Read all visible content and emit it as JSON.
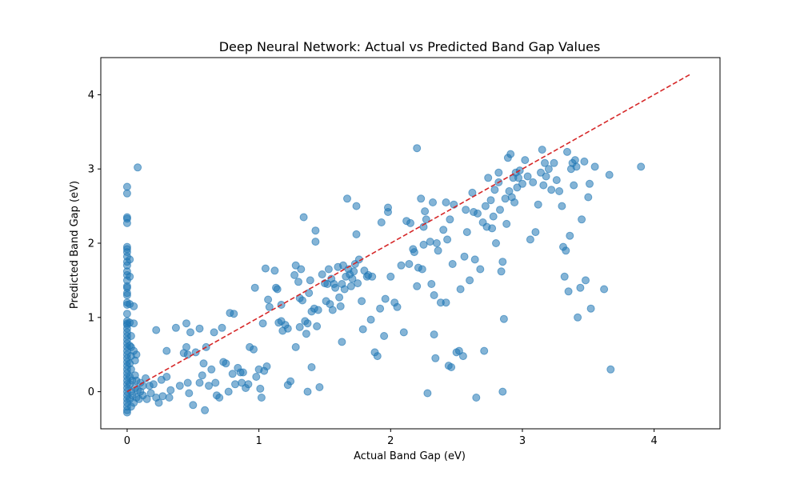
{
  "chart_data": {
    "type": "scatter",
    "title": "Deep Neural Network: Actual vs Predicted Band Gap Values",
    "xlabel": "Actual Band Gap (eV)",
    "ylabel": "Predicted Band Gap (eV)",
    "xlim": [
      -0.2,
      4.5
    ],
    "ylim": [
      -0.5,
      4.5
    ],
    "xticks": [
      0,
      1,
      2,
      3,
      4
    ],
    "yticks": [
      0,
      1,
      2,
      3,
      4
    ],
    "grid": false,
    "colors": {
      "points": "#1f77b4",
      "reference_line": "#d62728"
    },
    "reference_line": {
      "style": "dashed",
      "from": [
        0,
        0
      ],
      "to": [
        4.28,
        4.28
      ]
    },
    "points": [
      [
        0,
        2.76
      ],
      [
        0,
        2.67
      ],
      [
        0,
        2.35
      ],
      [
        0,
        2.33
      ],
      [
        0,
        2.27
      ],
      [
        0,
        1.95
      ],
      [
        0,
        1.92
      ],
      [
        0,
        1.88
      ],
      [
        0,
        1.82
      ],
      [
        0,
        1.75
      ],
      [
        0,
        1.7
      ],
      [
        0,
        1.62
      ],
      [
        0,
        1.57
      ],
      [
        0,
        1.5
      ],
      [
        0,
        1.42
      ],
      [
        0,
        1.4
      ],
      [
        0,
        1.33
      ],
      [
        0,
        1.3
      ],
      [
        0,
        1.2
      ],
      [
        0,
        1.17
      ],
      [
        0,
        1.05
      ],
      [
        0,
        0.95
      ],
      [
        0,
        0.92
      ],
      [
        0,
        0.9
      ],
      [
        0,
        0.85
      ],
      [
        0,
        0.8
      ],
      [
        0,
        0.75
      ],
      [
        0,
        0.7
      ],
      [
        0,
        0.65
      ],
      [
        0,
        0.6
      ],
      [
        0,
        0.55
      ],
      [
        0,
        0.5
      ],
      [
        0,
        0.45
      ],
      [
        0,
        0.4
      ],
      [
        0,
        0.35
      ],
      [
        0,
        0.3
      ],
      [
        0,
        0.25
      ],
      [
        0,
        0.2
      ],
      [
        0,
        0.15
      ],
      [
        0,
        0.1
      ],
      [
        0,
        0.05
      ],
      [
        0,
        0
      ],
      [
        0,
        -0.05
      ],
      [
        0,
        -0.1
      ],
      [
        0,
        -0.15
      ],
      [
        0,
        -0.2
      ],
      [
        0,
        -0.25
      ],
      [
        0,
        -0.28
      ],
      [
        0.02,
        1.78
      ],
      [
        0.02,
        1.55
      ],
      [
        0.02,
        1.18
      ],
      [
        0.02,
        0.93
      ],
      [
        0.03,
        0.75
      ],
      [
        0.02,
        0.62
      ],
      [
        0.03,
        0.48
      ],
      [
        0.02,
        0.38
      ],
      [
        0.02,
        0.2
      ],
      [
        0.02,
        0.1
      ],
      [
        0.03,
        0
      ],
      [
        0.02,
        -0.1
      ],
      [
        0.03,
        -0.2
      ],
      [
        0.03,
        0.6
      ],
      [
        0.03,
        0.3
      ],
      [
        0.04,
        0.15
      ],
      [
        0.04,
        -0.05
      ],
      [
        0.05,
        1.15
      ],
      [
        0.05,
        0.92
      ],
      [
        0.05,
        0.55
      ],
      [
        0.06,
        0.42
      ],
      [
        0.06,
        0.22
      ],
      [
        0.06,
        0.05
      ],
      [
        0.07,
        -0.08
      ],
      [
        0.05,
        -0.15
      ],
      [
        0.07,
        0.15
      ],
      [
        0.07,
        0.5
      ],
      [
        0.08,
        3.02
      ],
      [
        0.08,
        0.02
      ],
      [
        0.09,
        -0.1
      ],
      [
        0.1,
        0.12
      ],
      [
        0.1,
        0
      ],
      [
        0.12,
        -0.05
      ],
      [
        0.12,
        0.08
      ],
      [
        0.14,
        0.18
      ],
      [
        0.15,
        -0.1
      ],
      [
        0.17,
        0.08
      ],
      [
        0.18,
        -0.02
      ],
      [
        0.2,
        0.1
      ],
      [
        0.22,
        0.83
      ],
      [
        0.22,
        -0.08
      ],
      [
        0.24,
        -0.15
      ],
      [
        0.26,
        0.16
      ],
      [
        0.27,
        -0.06
      ],
      [
        0.3,
        0.2
      ],
      [
        0.3,
        0.55
      ],
      [
        0.32,
        -0.08
      ],
      [
        0.33,
        0.02
      ],
      [
        0.37,
        0.86
      ],
      [
        0.4,
        0.08
      ],
      [
        0.43,
        0.52
      ],
      [
        0.45,
        0.6
      ],
      [
        0.45,
        0.92
      ],
      [
        0.46,
        0.5
      ],
      [
        0.46,
        0.12
      ],
      [
        0.47,
        -0.02
      ],
      [
        0.48,
        0.8
      ],
      [
        0.5,
        -0.18
      ],
      [
        0.52,
        0.53
      ],
      [
        0.55,
        0.85
      ],
      [
        0.55,
        0.12
      ],
      [
        0.57,
        0.22
      ],
      [
        0.58,
        0.38
      ],
      [
        0.59,
        -0.25
      ],
      [
        0.6,
        0.6
      ],
      [
        0.62,
        0.08
      ],
      [
        0.64,
        0.3
      ],
      [
        0.66,
        0.8
      ],
      [
        0.67,
        0.12
      ],
      [
        0.68,
        -0.05
      ],
      [
        0.7,
        -0.08
      ],
      [
        0.72,
        0.86
      ],
      [
        0.73,
        0.4
      ],
      [
        0.75,
        0.38
      ],
      [
        0.77,
        0.0
      ],
      [
        0.78,
        1.06
      ],
      [
        0.8,
        0.24
      ],
      [
        0.81,
        1.05
      ],
      [
        0.82,
        0.1
      ],
      [
        0.84,
        0.32
      ],
      [
        0.86,
        0.26
      ],
      [
        0.87,
        0.12
      ],
      [
        0.88,
        0.26
      ],
      [
        0.9,
        0.05
      ],
      [
        0.92,
        0.1
      ],
      [
        0.93,
        0.6
      ],
      [
        0.96,
        0.57
      ],
      [
        0.97,
        1.4
      ],
      [
        0.98,
        0.2
      ],
      [
        1,
        0.3
      ],
      [
        1.01,
        0.04
      ],
      [
        1.02,
        -0.08
      ],
      [
        1.03,
        0.92
      ],
      [
        1.04,
        0.28
      ],
      [
        1.05,
        1.66
      ],
      [
        1.06,
        0.34
      ],
      [
        1.07,
        1.24
      ],
      [
        1.08,
        1.14
      ],
      [
        1.12,
        1.63
      ],
      [
        1.13,
        1.4
      ],
      [
        1.14,
        1.38
      ],
      [
        1.15,
        0.93
      ],
      [
        1.17,
        0.95
      ],
      [
        1.17,
        1.17
      ],
      [
        1.18,
        0.82
      ],
      [
        1.2,
        0.9
      ],
      [
        1.22,
        0.85
      ],
      [
        1.22,
        0.09
      ],
      [
        1.24,
        0.14
      ],
      [
        1.27,
        1.57
      ],
      [
        1.28,
        1.7
      ],
      [
        1.28,
        0.6
      ],
      [
        1.3,
        1.48
      ],
      [
        1.31,
        1.26
      ],
      [
        1.31,
        0.87
      ],
      [
        1.32,
        1.65
      ],
      [
        1.33,
        1.23
      ],
      [
        1.34,
        2.35
      ],
      [
        1.35,
        0.95
      ],
      [
        1.36,
        0.78
      ],
      [
        1.37,
        0.92
      ],
      [
        1.37,
        0.0
      ],
      [
        1.38,
        1.33
      ],
      [
        1.39,
        1.5
      ],
      [
        1.4,
        1.08
      ],
      [
        1.4,
        0.33
      ],
      [
        1.42,
        1.12
      ],
      [
        1.43,
        2.17
      ],
      [
        1.43,
        2.02
      ],
      [
        1.44,
        0.88
      ],
      [
        1.45,
        1.1
      ],
      [
        1.46,
        0.06
      ],
      [
        1.48,
        1.58
      ],
      [
        1.5,
        1.46
      ],
      [
        1.51,
        1.22
      ],
      [
        1.52,
        1.45
      ],
      [
        1.53,
        1.65
      ],
      [
        1.54,
        1.18
      ],
      [
        1.55,
        1.52
      ],
      [
        1.56,
        1.1
      ],
      [
        1.57,
        1.45
      ],
      [
        1.58,
        1.4
      ],
      [
        1.6,
        1.68
      ],
      [
        1.61,
        1.27
      ],
      [
        1.62,
        1.15
      ],
      [
        1.63,
        1.45
      ],
      [
        1.63,
        0.67
      ],
      [
        1.64,
        1.7
      ],
      [
        1.65,
        1.38
      ],
      [
        1.66,
        1.55
      ],
      [
        1.67,
        2.6
      ],
      [
        1.68,
        1.65
      ],
      [
        1.69,
        1.58
      ],
      [
        1.7,
        1.42
      ],
      [
        1.71,
        1.52
      ],
      [
        1.72,
        1.62
      ],
      [
        1.73,
        1.72
      ],
      [
        1.74,
        2.12
      ],
      [
        1.74,
        2.5
      ],
      [
        1.75,
        1.46
      ],
      [
        1.76,
        1.78
      ],
      [
        1.78,
        1.22
      ],
      [
        1.79,
        0.84
      ],
      [
        1.8,
        1.63
      ],
      [
        1.82,
        1.55
      ],
      [
        1.83,
        1.57
      ],
      [
        1.85,
        0.97
      ],
      [
        1.86,
        1.55
      ],
      [
        1.88,
        0.53
      ],
      [
        1.9,
        0.48
      ],
      [
        1.92,
        1.12
      ],
      [
        1.93,
        2.28
      ],
      [
        1.95,
        0.75
      ],
      [
        1.96,
        1.25
      ],
      [
        1.98,
        2.42
      ],
      [
        1.98,
        2.48
      ],
      [
        2,
        1.55
      ],
      [
        2.03,
        1.2
      ],
      [
        2.05,
        1.14
      ],
      [
        2.08,
        1.7
      ],
      [
        2.1,
        0.8
      ],
      [
        2.12,
        2.3
      ],
      [
        2.14,
        1.72
      ],
      [
        2.15,
        2.27
      ],
      [
        2.17,
        1.92
      ],
      [
        2.18,
        1.88
      ],
      [
        2.2,
        3.28
      ],
      [
        2.2,
        1.42
      ],
      [
        2.21,
        1.67
      ],
      [
        2.23,
        2.6
      ],
      [
        2.24,
        1.65
      ],
      [
        2.25,
        1.98
      ],
      [
        2.25,
        2.22
      ],
      [
        2.26,
        2.43
      ],
      [
        2.27,
        2.32
      ],
      [
        2.28,
        -0.02
      ],
      [
        2.3,
        2.02
      ],
      [
        2.31,
        1.45
      ],
      [
        2.32,
        2.55
      ],
      [
        2.33,
        1.3
      ],
      [
        2.33,
        0.77
      ],
      [
        2.34,
        0.45
      ],
      [
        2.35,
        2.0
      ],
      [
        2.36,
        1.9
      ],
      [
        2.38,
        1.2
      ],
      [
        2.4,
        2.18
      ],
      [
        2.42,
        2.55
      ],
      [
        2.42,
        1.2
      ],
      [
        2.43,
        2.05
      ],
      [
        2.44,
        0.35
      ],
      [
        2.45,
        2.32
      ],
      [
        2.46,
        0.33
      ],
      [
        2.47,
        1.72
      ],
      [
        2.48,
        2.52
      ],
      [
        2.5,
        0.53
      ],
      [
        2.52,
        0.55
      ],
      [
        2.53,
        1.38
      ],
      [
        2.55,
        0.48
      ],
      [
        2.56,
        1.82
      ],
      [
        2.57,
        2.45
      ],
      [
        2.58,
        2.15
      ],
      [
        2.6,
        1.5
      ],
      [
        2.62,
        2.68
      ],
      [
        2.63,
        2.42
      ],
      [
        2.64,
        1.78
      ],
      [
        2.65,
        -0.08
      ],
      [
        2.66,
        2.4
      ],
      [
        2.68,
        1.65
      ],
      [
        2.7,
        2.28
      ],
      [
        2.71,
        0.55
      ],
      [
        2.72,
        2.5
      ],
      [
        2.73,
        2.22
      ],
      [
        2.74,
        2.88
      ],
      [
        2.76,
        2.58
      ],
      [
        2.77,
        2.2
      ],
      [
        2.78,
        2.36
      ],
      [
        2.79,
        2.72
      ],
      [
        2.8,
        2.0
      ],
      [
        2.82,
        2.82
      ],
      [
        2.82,
        2.95
      ],
      [
        2.83,
        2.45
      ],
      [
        2.84,
        1.62
      ],
      [
        2.85,
        1.75
      ],
      [
        2.85,
        0.0
      ],
      [
        2.86,
        0.98
      ],
      [
        2.87,
        2.6
      ],
      [
        2.88,
        2.26
      ],
      [
        2.89,
        3.15
      ],
      [
        2.9,
        2.7
      ],
      [
        2.91,
        3.2
      ],
      [
        2.92,
        2.62
      ],
      [
        2.93,
        2.88
      ],
      [
        2.94,
        2.55
      ],
      [
        2.95,
        2.95
      ],
      [
        2.96,
        2.75
      ],
      [
        2.97,
        2.88
      ],
      [
        2.98,
        2.98
      ],
      [
        3.0,
        2.8
      ],
      [
        3.02,
        3.12
      ],
      [
        3.04,
        2.9
      ],
      [
        3.06,
        2.05
      ],
      [
        3.08,
        2.82
      ],
      [
        3.1,
        2.15
      ],
      [
        3.12,
        2.52
      ],
      [
        3.14,
        2.95
      ],
      [
        3.15,
        3.26
      ],
      [
        3.16,
        2.78
      ],
      [
        3.17,
        3.08
      ],
      [
        3.18,
        2.9
      ],
      [
        3.2,
        3.0
      ],
      [
        3.22,
        2.72
      ],
      [
        3.24,
        3.08
      ],
      [
        3.26,
        2.85
      ],
      [
        3.28,
        2.7
      ],
      [
        3.3,
        2.5
      ],
      [
        3.31,
        1.95
      ],
      [
        3.32,
        1.55
      ],
      [
        3.33,
        1.9
      ],
      [
        3.34,
        3.23
      ],
      [
        3.35,
        1.35
      ],
      [
        3.36,
        2.1
      ],
      [
        3.37,
        3.0
      ],
      [
        3.38,
        3.08
      ],
      [
        3.39,
        2.78
      ],
      [
        3.4,
        3.12
      ],
      [
        3.41,
        3.03
      ],
      [
        3.42,
        1.0
      ],
      [
        3.44,
        1.4
      ],
      [
        3.45,
        2.32
      ],
      [
        3.47,
        3.1
      ],
      [
        3.48,
        1.5
      ],
      [
        3.5,
        2.62
      ],
      [
        3.51,
        2.8
      ],
      [
        3.52,
        1.12
      ],
      [
        3.55,
        3.03
      ],
      [
        3.62,
        1.38
      ],
      [
        3.66,
        2.92
      ],
      [
        3.67,
        0.3
      ],
      [
        3.9,
        3.03
      ]
    ]
  }
}
